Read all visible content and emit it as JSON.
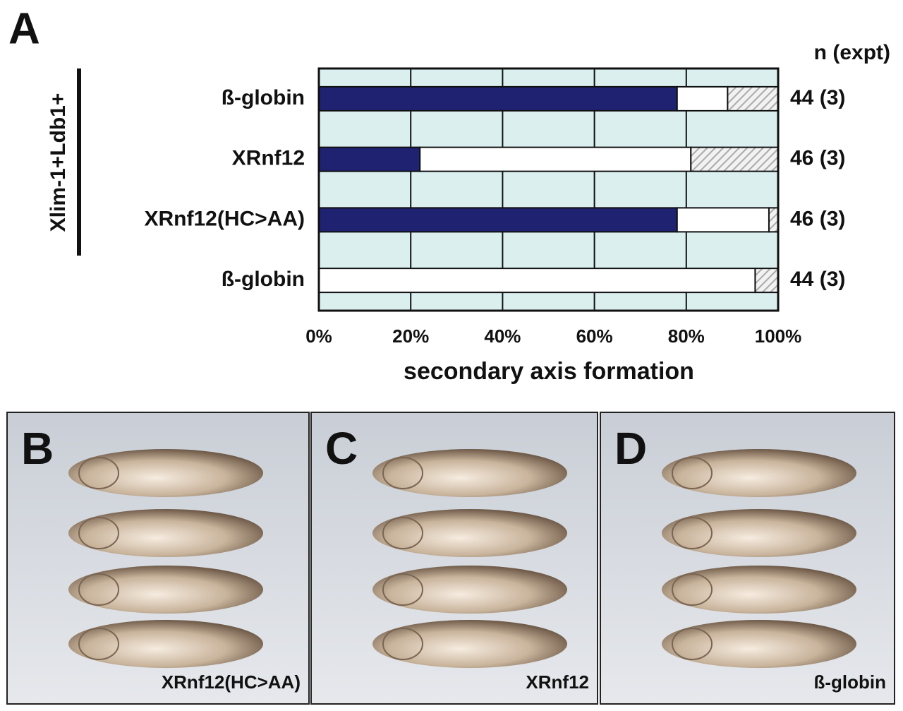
{
  "chart_data": {
    "type": "stacked-barh",
    "panel_letter": "A",
    "group_label": "Xlim-1+Ldb1+",
    "n_header": "n (expt)",
    "categories": [
      "ß-globin",
      "XRnf12",
      "XRnf12(HC>AA)",
      "ß-globin"
    ],
    "n_labels": [
      "44 (3)",
      "46 (3)",
      "46 (3)",
      "44 (3)"
    ],
    "series": [
      {
        "color": "#1f2270",
        "values": [
          78,
          22,
          78,
          0
        ]
      },
      {
        "color": "#ffffff",
        "values": [
          11,
          59,
          20,
          95
        ]
      },
      {
        "color": "hatch",
        "values": [
          11,
          19,
          2,
          5
        ]
      }
    ],
    "xlim": [
      0,
      100
    ],
    "xticks": [
      {
        "value": 0,
        "label": "0%"
      },
      {
        "value": 20,
        "label": "20%"
      },
      {
        "value": 40,
        "label": "40%"
      },
      {
        "value": 60,
        "label": "60%"
      },
      {
        "value": 80,
        "label": "80%"
      },
      {
        "value": 100,
        "label": "100%"
      }
    ],
    "xlabel": "secondary axis formation",
    "grid": true,
    "background": "#dcefef"
  },
  "panels": [
    {
      "letter": "B",
      "caption": "XRnf12(HC>AA)"
    },
    {
      "letter": "C",
      "caption": "XRnf12"
    },
    {
      "letter": "D",
      "caption": "ß-globin"
    }
  ]
}
